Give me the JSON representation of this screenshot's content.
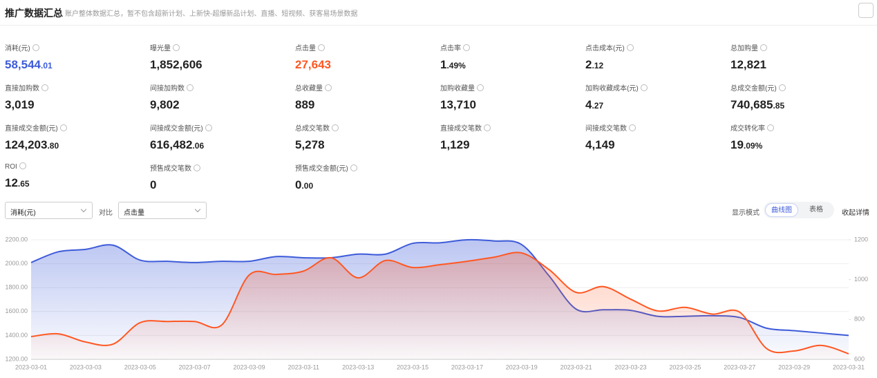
{
  "header": {
    "title": "推广数据汇总",
    "subtitle": "账户整体数据汇总，暂不包含超新计划、上新快-超爆新品计划、直播、短视频、获客易场景数据"
  },
  "metrics": [
    {
      "label": "消耗(元)",
      "value": "58,544.01"
    },
    {
      "label": "曝光量",
      "value": "1,852,606"
    },
    {
      "label": "点击量",
      "value": "27,643"
    },
    {
      "label": "点击率",
      "value": "1.49%"
    },
    {
      "label": "点击成本(元)",
      "value": "2.12"
    },
    {
      "label": "总加购量",
      "value": "12,821"
    },
    {
      "label": "直接加购数",
      "value": "3,019"
    },
    {
      "label": "间接加购数",
      "value": "9,802"
    },
    {
      "label": "总收藏量",
      "value": "889"
    },
    {
      "label": "加购收藏量",
      "value": "13,710"
    },
    {
      "label": "加购收藏成本(元)",
      "value": "4.27"
    },
    {
      "label": "总成交金额(元)",
      "value": "740,685.85"
    },
    {
      "label": "直接成交金额(元)",
      "value": "124,203.80"
    },
    {
      "label": "间接成交金额(元)",
      "value": "616,482.06"
    },
    {
      "label": "总成交笔数",
      "value": "5,278"
    },
    {
      "label": "直接成交笔数",
      "value": "1,129"
    },
    {
      "label": "间接成交笔数",
      "value": "4,149"
    },
    {
      "label": "成交转化率",
      "value": "19.09%"
    },
    {
      "label": "ROI",
      "value": "12.65"
    },
    {
      "label": "预售成交笔数",
      "value": "0"
    },
    {
      "label": "预售成交金额(元)",
      "value": "0.00"
    }
  ],
  "controls": {
    "compare": "对比",
    "display_mode": "显示模式",
    "modes": [
      "曲线图",
      "表格"
    ],
    "collapse": "收起详情"
  },
  "chart_data": {
    "type": "line",
    "x": [
      "2023-03-01",
      null,
      "2023-03-03",
      null,
      "2023-03-05",
      null,
      "2023-03-07",
      null,
      "2023-03-09",
      null,
      "2023-03-11",
      null,
      "2023-03-13",
      null,
      "2023-03-15",
      null,
      "2023-03-17",
      null,
      "2023-03-19",
      null,
      "2023-03-21",
      null,
      "2023-03-23",
      null,
      "2023-03-25",
      null,
      "2023-03-27",
      null,
      "2023-03-29",
      null,
      "2023-03-31"
    ],
    "series": [
      {
        "name": "消耗(元)",
        "color": "#3d5bd9",
        "values": [
          2010,
          2100,
          2120,
          2155,
          2030,
          2020,
          2010,
          2020,
          2020,
          2060,
          2050,
          2050,
          2080,
          2080,
          2170,
          2175,
          2200,
          2190,
          2160,
          1900,
          1620,
          1615,
          1610,
          1560,
          1560,
          1565,
          1550,
          1460,
          1440,
          1420,
          1400
        ]
      },
      {
        "name": "点击量",
        "color": "#ff5722",
        "axis": "y2",
        "values": [
          714,
          728,
          687,
          676,
          784,
          790,
          790,
          773,
          1023,
          1026,
          1043,
          1110,
          1009,
          1096,
          1061,
          1075,
          1092,
          1113,
          1134,
          1051,
          936,
          965,
          902,
          843,
          861,
          827,
          837,
          653,
          642,
          670,
          628
        ]
      }
    ],
    "ylim": [
      1200,
      2200
    ],
    "yticks": [
      {
        "value": 1200,
        "label": "1200.00"
      },
      {
        "value": 1400,
        "label": "1400.00"
      },
      {
        "value": 1600,
        "label": "1600.00"
      },
      {
        "value": 1800,
        "label": "1800.00"
      },
      {
        "value": 2000,
        "label": "2000.00"
      },
      {
        "value": 2200,
        "label": "2200.00"
      }
    ],
    "y2lim": [
      600,
      1200
    ],
    "y2ticks": [
      600,
      800,
      1000,
      1200
    ],
    "grid": true
  }
}
